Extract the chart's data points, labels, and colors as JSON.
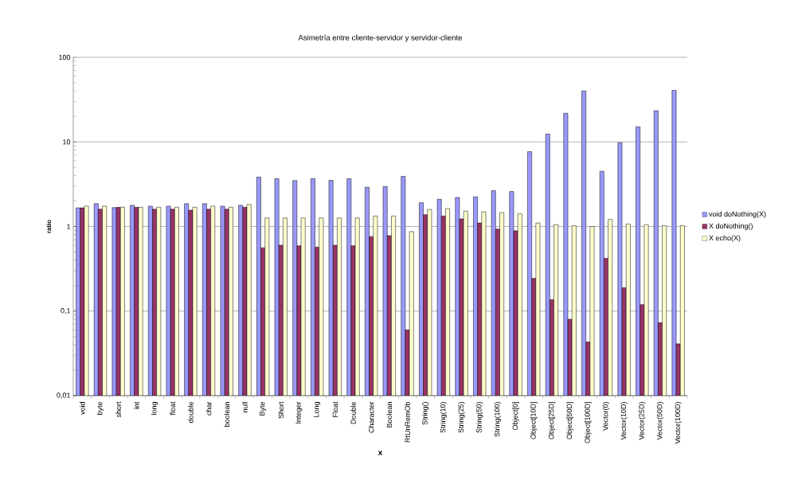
{
  "chart_data": {
    "type": "bar",
    "title": "Asimetría entre cliente-servidor y servidor-cliente",
    "xlabel": "x",
    "ylabel": "ratio",
    "categories": [
      "void",
      "byte",
      "short",
      "int",
      "long",
      "float",
      "double",
      "char",
      "boolean",
      "null",
      "Byte",
      "Short",
      "Integer",
      "Long",
      "Float",
      "Double",
      "Character",
      "Boolean",
      "RtUnRemOb",
      "String()",
      "String(10)",
      "String(25)",
      "String(50)",
      "String(100)",
      "Object[0]",
      "Object[10D]",
      "Object[25D]",
      "Object[50D]",
      "Object[100D]",
      "Vector(0)",
      "Vector(10D)",
      "Vector(25D)",
      "Vector(50D)",
      "Vector(100D)"
    ],
    "series": [
      {
        "name": "void doNothing(X)",
        "color": "#9999ff",
        "values": [
          1.66,
          1.86,
          1.67,
          1.78,
          1.74,
          1.74,
          1.86,
          1.86,
          1.74,
          1.78,
          3.83,
          3.67,
          3.49,
          3.67,
          3.51,
          3.67,
          2.91,
          2.97,
          3.91,
          1.91,
          2.1,
          2.2,
          2.24,
          2.65,
          2.59,
          7.66,
          12.4,
          21.8,
          40.0,
          4.49,
          9.78,
          15.1,
          23.4,
          40.9
        ]
      },
      {
        "name": "X doNothing()",
        "color": "#993366",
        "values": [
          1.66,
          1.6,
          1.69,
          1.69,
          1.6,
          1.6,
          1.56,
          1.6,
          1.6,
          1.69,
          0.56,
          0.6,
          0.59,
          0.57,
          0.6,
          0.59,
          0.76,
          0.78,
          0.06,
          1.38,
          1.33,
          1.23,
          1.1,
          0.93,
          0.89,
          0.243,
          0.136,
          0.08,
          0.043,
          0.42,
          0.189,
          0.119,
          0.073,
          0.041
        ]
      },
      {
        "name": "X echo(X)",
        "color": "#ffffcc",
        "values": [
          1.74,
          1.74,
          1.69,
          1.69,
          1.69,
          1.69,
          1.69,
          1.74,
          1.69,
          1.82,
          1.26,
          1.26,
          1.26,
          1.26,
          1.26,
          1.26,
          1.33,
          1.33,
          0.87,
          1.59,
          1.63,
          1.52,
          1.49,
          1.46,
          1.41,
          1.1,
          1.05,
          1.02,
          1.0,
          1.21,
          1.07,
          1.05,
          1.02,
          1.02
        ]
      }
    ],
    "log": "y",
    "ylim": [
      0.01,
      100
    ],
    "yticks": [
      {
        "value": 0.01,
        "label": "0,01"
      },
      {
        "value": 0.1,
        "label": "0,1"
      },
      1,
      10,
      100
    ],
    "grid": "y",
    "legend": "right"
  }
}
